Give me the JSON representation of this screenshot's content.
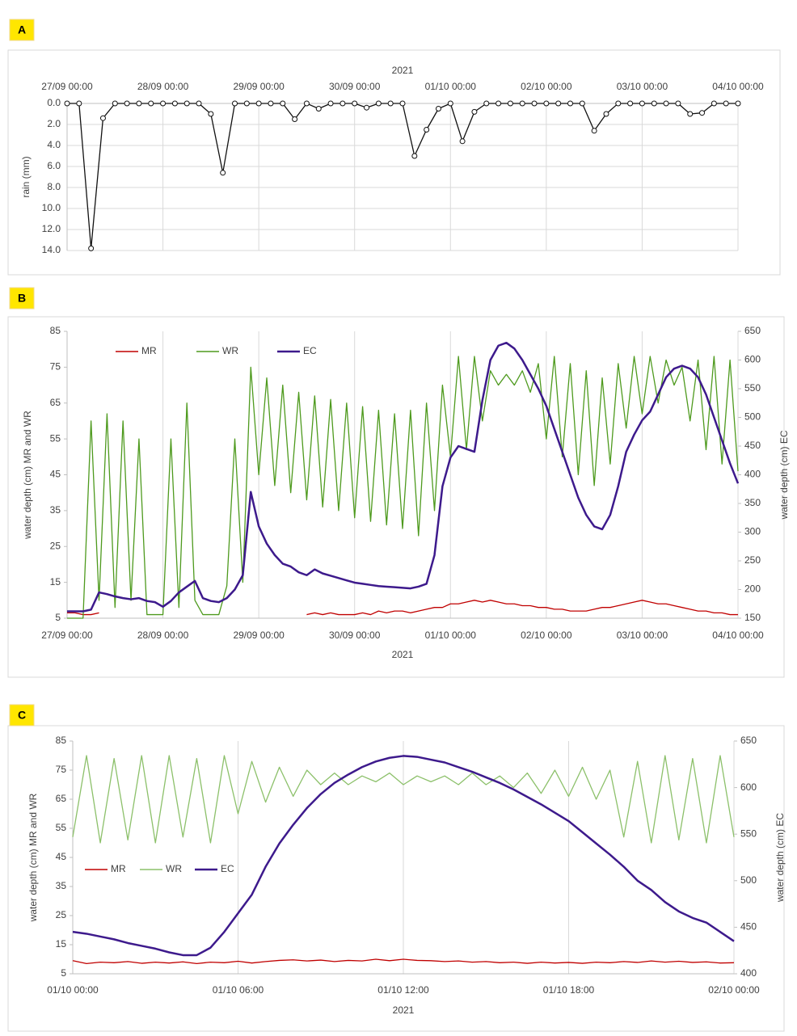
{
  "chart_data": [
    {
      "panel_label": "A",
      "type": "line",
      "x_label": "2021",
      "y_label": "rain (mm)",
      "x_axis_position": "top",
      "y_inverted": true,
      "markers": true,
      "grid": "both",
      "color": "#111111",
      "xlim": [
        "27/09 00:00",
        "04/10 00:00"
      ],
      "xticks": [
        "27/09 00:00",
        "28/09 00:00",
        "29/09 00:00",
        "30/09 00:00",
        "01/10 00:00",
        "02/10 00:00",
        "03/10 00:00",
        "04/10 00:00"
      ],
      "ylim": [
        0,
        14
      ],
      "yticks": [
        {
          "value": 0,
          "label": "0.0"
        },
        {
          "value": 2,
          "label": "2.0"
        },
        {
          "value": 4,
          "label": "4.0"
        },
        {
          "value": 6,
          "label": "6.0"
        },
        {
          "value": 8,
          "label": "8.0"
        },
        {
          "value": 10,
          "label": "10.0"
        },
        {
          "value": 12,
          "label": "12.0"
        },
        {
          "value": 14,
          "label": "14.0"
        }
      ],
      "x": [
        "27/09 00:00",
        "27/09 03:00",
        "27/09 06:00",
        "27/09 09:00",
        "27/09 12:00",
        "27/09 15:00",
        "27/09 18:00",
        "27/09 21:00",
        "28/09 00:00",
        "28/09 03:00",
        "28/09 06:00",
        "28/09 09:00",
        "28/09 12:00",
        "28/09 15:00",
        "28/09 18:00",
        "28/09 21:00",
        "29/09 00:00",
        "29/09 03:00",
        "29/09 06:00",
        "29/09 09:00",
        "29/09 12:00",
        "29/09 15:00",
        "29/09 18:00",
        "29/09 21:00",
        "30/09 00:00",
        "30/09 03:00",
        "30/09 06:00",
        "30/09 09:00",
        "30/09 12:00",
        "30/09 15:00",
        "30/09 18:00",
        "30/09 21:00",
        "01/10 00:00",
        "01/10 03:00",
        "01/10 06:00",
        "01/10 09:00",
        "01/10 12:00",
        "01/10 15:00",
        "01/10 18:00",
        "01/10 21:00",
        "02/10 00:00",
        "02/10 03:00",
        "02/10 06:00",
        "02/10 09:00",
        "02/10 12:00",
        "02/10 15:00",
        "02/10 18:00",
        "02/10 21:00",
        "03/10 00:00",
        "03/10 03:00",
        "03/10 06:00",
        "03/10 09:00",
        "03/10 12:00",
        "03/10 15:00",
        "03/10 18:00",
        "03/10 21:00",
        "04/10 00:00"
      ],
      "values": [
        0,
        0,
        13.8,
        1.4,
        0,
        0,
        0,
        0,
        0,
        0,
        0,
        0,
        1.0,
        6.6,
        0,
        0,
        0,
        0,
        0,
        1.5,
        0,
        0.5,
        0,
        0,
        0,
        0.4,
        0,
        0,
        0,
        5.0,
        2.5,
        0.5,
        0,
        3.6,
        0.8,
        0,
        0,
        0,
        0,
        0,
        0,
        0,
        0,
        0,
        2.6,
        1.0,
        0,
        0,
        0,
        0,
        0,
        0,
        1.0,
        0.9,
        0,
        0,
        0
      ]
    },
    {
      "panel_label": "B",
      "type": "line",
      "x_label": "2021",
      "y_label": "water depth (cm) MR and WR",
      "y2_label": "water depth (cm) EC",
      "x_axis_position": "bottom",
      "grid": "x",
      "legend": "top-left",
      "xlim": [
        "27/09 00:00",
        "04/10 00:00"
      ],
      "xticks": [
        "27/09 00:00",
        "28/09 00:00",
        "29/09 00:00",
        "30/09 00:00",
        "01/10 00:00",
        "02/10 00:00",
        "03/10 00:00",
        "04/10 00:00"
      ],
      "ylim": [
        5,
        85
      ],
      "yticks": [
        5,
        15,
        25,
        35,
        45,
        55,
        65,
        75,
        85
      ],
      "y2lim": [
        150,
        650
      ],
      "y2ticks": [
        150,
        200,
        250,
        300,
        350,
        400,
        450,
        500,
        550,
        600,
        650
      ],
      "x": [
        "27/09 00:00",
        "27/09 02:00",
        "27/09 04:00",
        "27/09 06:00",
        "27/09 08:00",
        "27/09 10:00",
        "27/09 12:00",
        "27/09 14:00",
        "27/09 16:00",
        "27/09 18:00",
        "27/09 20:00",
        "27/09 22:00",
        "28/09 00:00",
        "28/09 02:00",
        "28/09 04:00",
        "28/09 06:00",
        "28/09 08:00",
        "28/09 10:00",
        "28/09 12:00",
        "28/09 14:00",
        "28/09 16:00",
        "28/09 18:00",
        "28/09 20:00",
        "28/09 22:00",
        "29/09 00:00",
        "29/09 02:00",
        "29/09 04:00",
        "29/09 06:00",
        "29/09 08:00",
        "29/09 10:00",
        "29/09 12:00",
        "29/09 14:00",
        "29/09 16:00",
        "29/09 18:00",
        "29/09 20:00",
        "29/09 22:00",
        "30/09 00:00",
        "30/09 02:00",
        "30/09 04:00",
        "30/09 06:00",
        "30/09 08:00",
        "30/09 10:00",
        "30/09 12:00",
        "30/09 14:00",
        "30/09 16:00",
        "30/09 18:00",
        "30/09 20:00",
        "30/09 22:00",
        "01/10 00:00",
        "01/10 02:00",
        "01/10 04:00",
        "01/10 06:00",
        "01/10 08:00",
        "01/10 10:00",
        "01/10 12:00",
        "01/10 14:00",
        "01/10 16:00",
        "01/10 18:00",
        "01/10 20:00",
        "01/10 22:00",
        "02/10 00:00",
        "02/10 02:00",
        "02/10 04:00",
        "02/10 06:00",
        "02/10 08:00",
        "02/10 10:00",
        "02/10 12:00",
        "02/10 14:00",
        "02/10 16:00",
        "02/10 18:00",
        "02/10 20:00",
        "02/10 22:00",
        "03/10 00:00",
        "03/10 02:00",
        "03/10 04:00",
        "03/10 06:00",
        "03/10 08:00",
        "03/10 10:00",
        "03/10 12:00",
        "03/10 14:00",
        "03/10 16:00",
        "03/10 18:00",
        "03/10 20:00",
        "03/10 22:00",
        "04/10 00:00"
      ],
      "series": [
        {
          "name": "MR",
          "color": "#c00000",
          "values": [
            6.5,
            6.5,
            6,
            6,
            6.5,
            null,
            null,
            null,
            null,
            null,
            null,
            null,
            null,
            null,
            null,
            null,
            null,
            null,
            null,
            null,
            null,
            null,
            null,
            null,
            null,
            null,
            null,
            null,
            null,
            null,
            6,
            6.5,
            6,
            6.5,
            6,
            6,
            6,
            6.5,
            6,
            7,
            6.5,
            7,
            7,
            6.5,
            7,
            7.5,
            8,
            8,
            9,
            9,
            9.5,
            10,
            9.5,
            10,
            9.5,
            9,
            9,
            8.5,
            8.5,
            8,
            8,
            7.5,
            7.5,
            7,
            7,
            7,
            7.5,
            8,
            8,
            8.5,
            9,
            9.5,
            10,
            9.5,
            9,
            9,
            8.5,
            8,
            7.5,
            7,
            7,
            6.5,
            6.5,
            6,
            6
          ]
        },
        {
          "name": "WR",
          "color": "#4e9a1e",
          "values": [
            5,
            5,
            5,
            60,
            10,
            62,
            8,
            60,
            10,
            55,
            6,
            6,
            6,
            55,
            8,
            65,
            10,
            6,
            6,
            6,
            14,
            55,
            15,
            75,
            45,
            72,
            42,
            70,
            40,
            68,
            38,
            67,
            36,
            66,
            35,
            65,
            33,
            64,
            32,
            63,
            31,
            62,
            30,
            63,
            28,
            65,
            35,
            70,
            50,
            78,
            52,
            78,
            60,
            74,
            70,
            73,
            70,
            74,
            68,
            76,
            55,
            78,
            50,
            76,
            45,
            74,
            42,
            72,
            48,
            76,
            58,
            78,
            62,
            78,
            65,
            77,
            70,
            75,
            60,
            77,
            52,
            78,
            48,
            77,
            46
          ]
        },
        {
          "name": "EC",
          "color": "#3d1a8c",
          "axis": "y2",
          "values": [
            162,
            162,
            162,
            165,
            195,
            192,
            188,
            185,
            183,
            185,
            180,
            178,
            170,
            180,
            195,
            205,
            215,
            185,
            180,
            178,
            185,
            200,
            225,
            370,
            310,
            280,
            260,
            245,
            240,
            230,
            225,
            235,
            228,
            224,
            220,
            216,
            212,
            210,
            208,
            206,
            205,
            204,
            203,
            202,
            205,
            210,
            260,
            380,
            430,
            450,
            445,
            440,
            530,
            600,
            625,
            630,
            620,
            600,
            575,
            550,
            520,
            480,
            440,
            400,
            360,
            330,
            310,
            305,
            330,
            380,
            440,
            470,
            495,
            510,
            540,
            570,
            585,
            590,
            585,
            570,
            540,
            500,
            460,
            420,
            385
          ]
        }
      ]
    },
    {
      "panel_label": "C",
      "type": "line",
      "x_label": "2021",
      "y_label": "water depth (cm) MR and WR",
      "y2_label": "water depth (cm) EC",
      "x_axis_position": "bottom",
      "grid": "x",
      "legend": "left",
      "xlim": [
        "01/10 00:00",
        "02/10 00:00"
      ],
      "xticks": [
        "01/10 00:00",
        "01/10 06:00",
        "01/10 12:00",
        "01/10 18:00",
        "02/10 00:00"
      ],
      "ylim": [
        5,
        85
      ],
      "yticks": [
        5,
        15,
        25,
        35,
        45,
        55,
        65,
        75,
        85
      ],
      "y2lim": [
        400,
        650
      ],
      "y2ticks": [
        400,
        450,
        500,
        550,
        600,
        650
      ],
      "x": [
        "01/10 00:00",
        "01/10 00:30",
        "01/10 01:00",
        "01/10 01:30",
        "01/10 02:00",
        "01/10 02:30",
        "01/10 03:00",
        "01/10 03:30",
        "01/10 04:00",
        "01/10 04:30",
        "01/10 05:00",
        "01/10 05:30",
        "01/10 06:00",
        "01/10 06:30",
        "01/10 07:00",
        "01/10 07:30",
        "01/10 08:00",
        "01/10 08:30",
        "01/10 09:00",
        "01/10 09:30",
        "01/10 10:00",
        "01/10 10:30",
        "01/10 11:00",
        "01/10 11:30",
        "01/10 12:00",
        "01/10 12:30",
        "01/10 13:00",
        "01/10 13:30",
        "01/10 14:00",
        "01/10 14:30",
        "01/10 15:00",
        "01/10 15:30",
        "01/10 16:00",
        "01/10 16:30",
        "01/10 17:00",
        "01/10 17:30",
        "01/10 18:00",
        "01/10 18:30",
        "01/10 19:00",
        "01/10 19:30",
        "01/10 20:00",
        "01/10 20:30",
        "01/10 21:00",
        "01/10 21:30",
        "01/10 22:00",
        "01/10 22:30",
        "01/10 23:00",
        "01/10 23:30",
        "02/10 00:00"
      ],
      "series": [
        {
          "name": "MR",
          "color": "#c00000",
          "values": [
            9.5,
            8.5,
            9,
            8.8,
            9.2,
            8.6,
            9,
            8.7,
            9.1,
            8.5,
            9,
            8.8,
            9.3,
            8.7,
            9.2,
            9.6,
            9.8,
            9.4,
            9.7,
            9.2,
            9.6,
            9.4,
            10,
            9.5,
            10,
            9.6,
            9.5,
            9.2,
            9.4,
            9,
            9.2,
            8.8,
            9,
            8.6,
            9,
            8.7,
            8.9,
            8.6,
            9,
            8.8,
            9.2,
            8.9,
            9.4,
            9,
            9.3,
            8.9,
            9.1,
            8.7,
            8.8
          ]
        },
        {
          "name": "WR",
          "color": "#8cc06a",
          "values": [
            52,
            80,
            50,
            79,
            51,
            80,
            50,
            80,
            52,
            79,
            50,
            80,
            60,
            78,
            64,
            76,
            66,
            75,
            70,
            74,
            70,
            73,
            71,
            74,
            70,
            73,
            71,
            73,
            70,
            74,
            70,
            73,
            69,
            74,
            67,
            75,
            66,
            76,
            65,
            75,
            52,
            78,
            50,
            80,
            51,
            79,
            50,
            80,
            52
          ]
        },
        {
          "name": "EC",
          "color": "#3d1a8c",
          "axis": "y2",
          "values": [
            445,
            443,
            440,
            437,
            433,
            430,
            427,
            423,
            420,
            420,
            428,
            445,
            465,
            485,
            515,
            540,
            560,
            578,
            593,
            605,
            614,
            622,
            628,
            632,
            634,
            633,
            630,
            627,
            622,
            617,
            611,
            605,
            598,
            590,
            582,
            573,
            564,
            552,
            540,
            528,
            515,
            500,
            490,
            477,
            467,
            460,
            455,
            445,
            435
          ]
        }
      ]
    }
  ]
}
